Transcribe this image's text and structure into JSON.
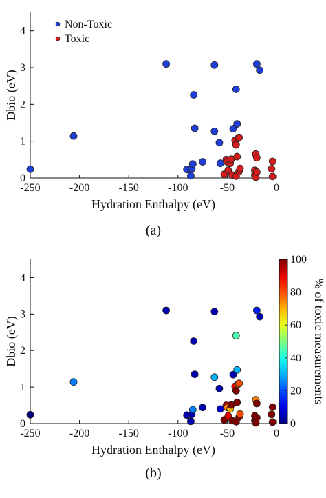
{
  "chart_data": [
    {
      "type": "scatter",
      "caption": "(a)",
      "xlabel": "Hydration Enthalpy (eV)",
      "ylabel": "Dbio (eV)",
      "xlim": [
        -250,
        0
      ],
      "ylim": [
        0,
        4.5
      ],
      "xticks": [
        -250,
        -200,
        -150,
        -100,
        -50,
        0
      ],
      "yticks": [
        0,
        1,
        2,
        3,
        4
      ],
      "legend_position": "top-left",
      "series": [
        {
          "name": "Non-Toxic",
          "color": "#1f3fd6",
          "points": [
            [
              -250,
              0.24
            ],
            [
              -206,
              1.14
            ],
            [
              -112,
              3.1
            ],
            [
              -91,
              0.23
            ],
            [
              -87,
              0.06
            ],
            [
              -86,
              0.25
            ],
            [
              -85,
              0.38
            ],
            [
              -84,
              2.26
            ],
            [
              -83,
              1.35
            ],
            [
              -75,
              0.44
            ],
            [
              -63,
              3.07
            ],
            [
              -63,
              1.27
            ],
            [
              -58,
              0.96
            ],
            [
              -57,
              0.4
            ],
            [
              -44,
              1.34
            ],
            [
              -41,
              2.41
            ],
            [
              -40,
              1.47
            ],
            [
              -20,
              3.1
            ],
            [
              -17,
              2.93
            ]
          ]
        },
        {
          "name": "Toxic",
          "color": "#d41c1c",
          "points": [
            [
              -53,
              0.1
            ],
            [
              -51,
              0.5
            ],
            [
              -50,
              0.44
            ],
            [
              -49,
              0.21
            ],
            [
              -47,
              0.4
            ],
            [
              -46,
              0.51
            ],
            [
              -45,
              0.08
            ],
            [
              -42,
              1.02
            ],
            [
              -41,
              0.9
            ],
            [
              -41,
              0.05
            ],
            [
              -40,
              0.58
            ],
            [
              -39,
              1.08
            ],
            [
              -38,
              1.1
            ],
            [
              -38,
              0.18
            ],
            [
              -37,
              0.26
            ],
            [
              -22,
              0.08
            ],
            [
              -22,
              0.21
            ],
            [
              -21,
              0.65
            ],
            [
              -21,
              0.02
            ],
            [
              -20,
              0.55
            ],
            [
              -20,
              0.16
            ],
            [
              -4,
              0.45
            ],
            [
              -4,
              0.04
            ],
            [
              -5,
              0.25
            ]
          ]
        }
      ]
    },
    {
      "type": "scatter",
      "caption": "(b)",
      "xlabel": "Hydration Enthalpy (eV)",
      "ylabel": "Dbio (eV)",
      "xlim": [
        -250,
        0
      ],
      "ylim": [
        0,
        4.5
      ],
      "xticks": [
        -250,
        -200,
        -150,
        -100,
        -50,
        0
      ],
      "yticks": [
        0,
        1,
        2,
        3,
        4
      ],
      "colorbar": {
        "label": "% of toxic measurements",
        "range": [
          0,
          100
        ],
        "ticks": [
          0,
          20,
          40,
          60,
          80,
          100
        ],
        "colormap": "jet"
      },
      "points": [
        [
          -250,
          0.24,
          0
        ],
        [
          -206,
          1.14,
          25
        ],
        [
          -112,
          3.1,
          5
        ],
        [
          -91,
          0.23,
          5
        ],
        [
          -87,
          0.06,
          5
        ],
        [
          -86,
          0.25,
          5
        ],
        [
          -85,
          0.38,
          25
        ],
        [
          -84,
          2.26,
          5
        ],
        [
          -83,
          1.35,
          5
        ],
        [
          -75,
          0.44,
          5
        ],
        [
          -63,
          3.07,
          5
        ],
        [
          -63,
          1.27,
          30
        ],
        [
          -58,
          0.96,
          5
        ],
        [
          -57,
          0.4,
          8
        ],
        [
          -44,
          1.34,
          5
        ],
        [
          -41,
          2.41,
          45
        ],
        [
          -40,
          1.47,
          30
        ],
        [
          -20,
          3.1,
          15
        ],
        [
          -17,
          2.93,
          5
        ],
        [
          -53,
          0.1,
          100
        ],
        [
          -51,
          0.5,
          95
        ],
        [
          -50,
          0.44,
          75
        ],
        [
          -49,
          0.21,
          90
        ],
        [
          -47,
          0.4,
          70
        ],
        [
          -46,
          0.51,
          100
        ],
        [
          -45,
          0.08,
          100
        ],
        [
          -42,
          1.02,
          90
        ],
        [
          -41,
          0.9,
          100
        ],
        [
          -41,
          0.05,
          100
        ],
        [
          -40,
          0.58,
          100
        ],
        [
          -39,
          1.08,
          75
        ],
        [
          -38,
          1.1,
          80
        ],
        [
          -38,
          0.18,
          100
        ],
        [
          -37,
          0.26,
          80
        ],
        [
          -22,
          0.08,
          100
        ],
        [
          -22,
          0.21,
          100
        ],
        [
          -21,
          0.65,
          75
        ],
        [
          -21,
          0.02,
          100
        ],
        [
          -20,
          0.55,
          100
        ],
        [
          -20,
          0.16,
          100
        ],
        [
          -4,
          0.45,
          100
        ],
        [
          -4,
          0.04,
          100
        ],
        [
          -5,
          0.25,
          100
        ]
      ]
    }
  ]
}
